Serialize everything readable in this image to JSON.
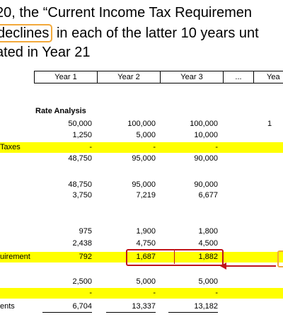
{
  "text": {
    "line1": "20, the “Current Income Tax Requiremen",
    "line2_pre": "",
    "line2_box": "declines",
    "line2_post": " in each of the latter 10 years unt",
    "line3": "ated in Year 21"
  },
  "table": {
    "headers": [
      "Year 1",
      "Year 2",
      "Year 3",
      "...",
      "Yea"
    ],
    "section_title": "Rate Analysis",
    "rows": [
      {
        "label": "",
        "v1": "50,000",
        "v2": "100,000",
        "v3": "100,000",
        "v5": "1",
        "yellow": false
      },
      {
        "label": "",
        "v1": "1,250",
        "v2": "5,000",
        "v3": "10,000",
        "v5": "",
        "yellow": false
      },
      {
        "label": "Taxes",
        "v1": "-",
        "v2": "-",
        "v3": "-",
        "v5": "",
        "yellow": true
      },
      {
        "label": "",
        "v1": "48,750",
        "v2": "95,000",
        "v3": "90,000",
        "v5": "",
        "yellow": false
      },
      {
        "label": "",
        "v1": "48,750",
        "v2": "95,000",
        "v3": "90,000",
        "v5": "",
        "yellow": false
      },
      {
        "label": "",
        "v1": "3,750",
        "v2": "7,219",
        "v3": "6,677",
        "v5": "",
        "yellow": false
      },
      {
        "label": "",
        "v1": "975",
        "v2": "1,900",
        "v3": "1,800",
        "v5": "",
        "yellow": false
      },
      {
        "label": "",
        "v1": "2,438",
        "v2": "4,750",
        "v3": "4,500",
        "v5": "",
        "yellow": false
      },
      {
        "label": "uirement",
        "v1": "792",
        "v2": "1,687",
        "v3": "1,882",
        "v5": "",
        "yellow": true
      },
      {
        "label": "",
        "v1": "2,500",
        "v2": "5,000",
        "v3": "5,000",
        "v5": "",
        "yellow": false
      },
      {
        "label": "",
        "v1": "-",
        "v2": "-",
        "v3": "-",
        "v5": "",
        "yellow": true
      },
      {
        "label": "ents",
        "v1": "6,704",
        "v2": "13,337",
        "v3": "13,182",
        "v5": "",
        "yellow": false
      }
    ]
  },
  "colors": {
    "highlight_yellow": "#ffff00",
    "callout_red": "#c0141b",
    "callout_orange": "#f2a93b"
  }
}
